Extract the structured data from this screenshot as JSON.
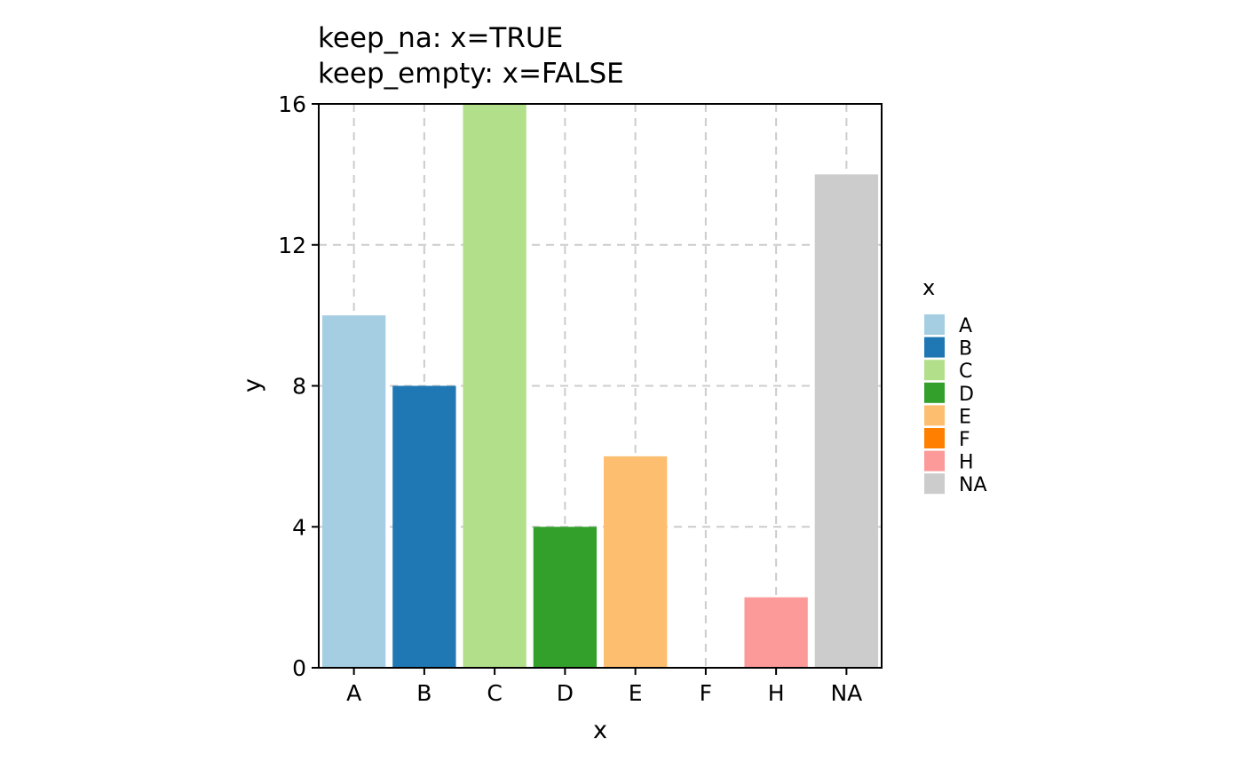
{
  "chart_data": {
    "type": "bar",
    "title": "keep_na: x=TRUE\nkeep_empty: x=FALSE",
    "title_lines": [
      "keep_na: x=TRUE",
      "keep_empty: x=FALSE"
    ],
    "xlabel": "x",
    "ylabel": "y",
    "categories": [
      "A",
      "B",
      "C",
      "D",
      "E",
      "F",
      "H",
      "NA"
    ],
    "values": [
      10,
      8,
      16,
      4,
      6,
      0,
      2,
      14
    ],
    "colors": [
      "#A6CEE3",
      "#1F78B4",
      "#B2DF8A",
      "#33A02C",
      "#FDBF6F",
      "#FF7F00",
      "#FB9A99",
      "#CCCCCC"
    ],
    "ylim": [
      0,
      16
    ],
    "yticks": [
      0,
      4,
      8,
      12,
      16
    ],
    "grid": true,
    "legend": {
      "title": "x",
      "position": "right",
      "entries": [
        "A",
        "B",
        "C",
        "D",
        "E",
        "F",
        "H",
        "NA"
      ]
    }
  }
}
